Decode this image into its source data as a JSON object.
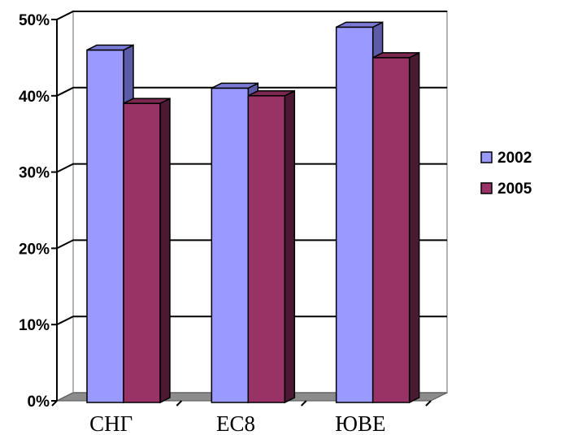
{
  "chart_data": {
    "type": "bar",
    "categories": [
      "СНГ",
      "ЕС8",
      "ЮВЕ"
    ],
    "series": [
      {
        "name": "2002",
        "values": [
          0.46,
          0.41,
          0.49
        ],
        "color": "#9999ff",
        "top_color": "#7a7ad6",
        "side_color": "#5b5ba8"
      },
      {
        "name": "2005",
        "values": [
          0.39,
          0.4,
          0.45
        ],
        "color": "#993366",
        "top_color": "#7a2850",
        "side_color": "#4a1a33"
      }
    ],
    "y_ticks": [
      "0%",
      "10%",
      "20%",
      "30%",
      "40%",
      "50%"
    ],
    "ylim": [
      0,
      0.5
    ],
    "grid": true,
    "legend_position": "right",
    "style": "3d-clustered-column",
    "title": "",
    "xlabel": "",
    "ylabel": ""
  }
}
